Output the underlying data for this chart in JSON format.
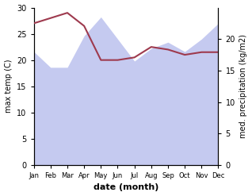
{
  "months": [
    "Jan",
    "Feb",
    "Mar",
    "Apr",
    "May",
    "Jun",
    "Jul",
    "Aug",
    "Sep",
    "Oct",
    "Nov",
    "Dec"
  ],
  "x": [
    0,
    1,
    2,
    3,
    4,
    5,
    6,
    7,
    8,
    9,
    10,
    11
  ],
  "temp_max": [
    27.0,
    28.0,
    29.0,
    26.5,
    20.0,
    20.0,
    20.5,
    22.5,
    22.0,
    21.0,
    21.5,
    21.5
  ],
  "precip_kg": [
    18.0,
    15.5,
    15.5,
    20.5,
    23.5,
    20.0,
    16.5,
    18.5,
    19.5,
    18.0,
    20.0,
    22.5
  ],
  "temp_color": "#9e3a4e",
  "precip_fill_color": "#c5caf0",
  "ylabel_left": "max temp (C)",
  "ylabel_right": "med. precipitation (kg/m2)",
  "xlabel": "date (month)",
  "ylim_left": [
    0,
    30
  ],
  "ylim_right": [
    0,
    25
  ],
  "left_ticks": [
    0,
    5,
    10,
    15,
    20,
    25,
    30
  ],
  "right_ticks": [
    0,
    5,
    10,
    15,
    20
  ],
  "bg_color": "#ffffff"
}
